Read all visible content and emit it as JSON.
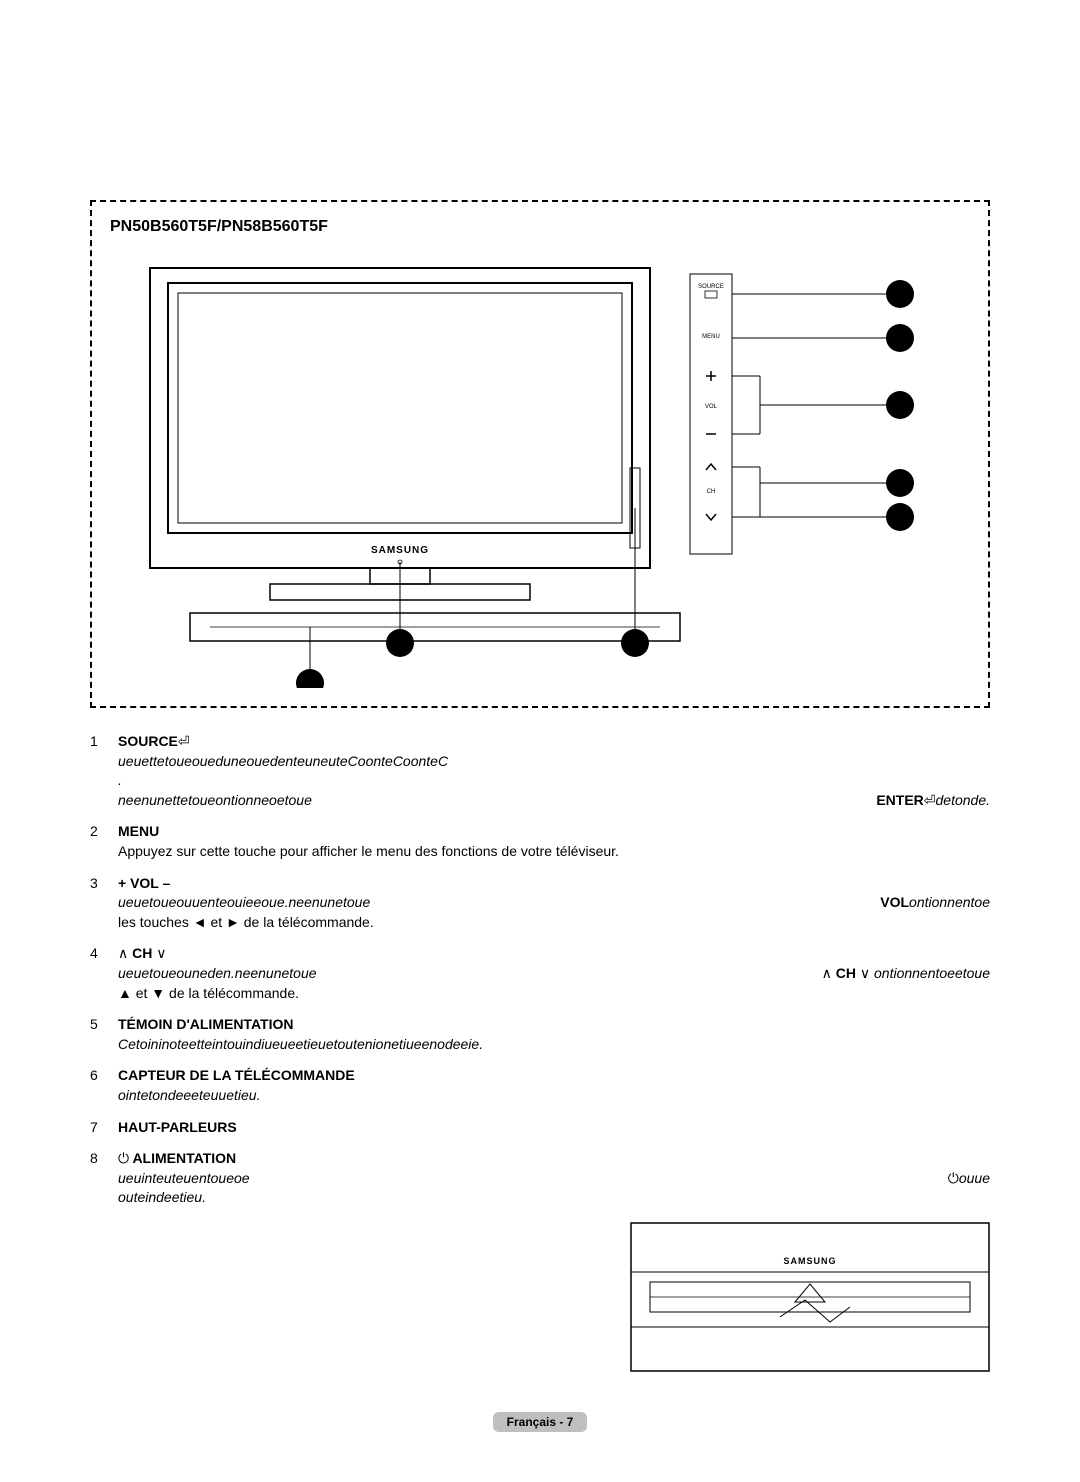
{
  "diagram": {
    "title": "PN50B560T5F/PN58B560T5F",
    "panel_labels": {
      "source": "SOURCE",
      "menu": "MENU",
      "vol": "VOL",
      "ch": "CH"
    },
    "brand_text": "SAMSUNG"
  },
  "items": [
    {
      "num": "1",
      "title_bold": "SOURCE",
      "title_suffix_icon": "⏎",
      "lines": [
        {
          "left_italic": "ueuettetoueoueduneouedenteuneuteCoonteCoonteC",
          "right": ""
        },
        {
          "left_italic": ".",
          "right": ""
        },
        {
          "left_italic": "neenunettetoueontionneoetoue",
          "right_bold": "ENTER",
          "right_suffix_icon": "⏎",
          "right_italic": "detonde."
        }
      ]
    },
    {
      "num": "2",
      "title_bold": "MENU",
      "lines": [
        {
          "left": "Appuyez sur cette touche pour afficher le menu des fonctions de votre téléviseur.",
          "right": ""
        }
      ]
    },
    {
      "num": "3",
      "title_bold": "+ VOL –",
      "lines": [
        {
          "left_italic": "ueuetoueouuenteouieeoue.neenunetoue",
          "right_bold": "VOL",
          "right_italic": "ontionnentoe"
        },
        {
          "left": "les touches ◄ et ► de la télécommande.",
          "right": ""
        }
      ]
    },
    {
      "num": "4",
      "title_prefix_icon": "∧",
      "title_bold": " CH ",
      "title_suffix_icon": "∨",
      "lines": [
        {
          "left_italic": "ueuetoueouneden.neenunetoue",
          "right_prefix_icon": "∧",
          "right_bold": " CH ",
          "right_mid_icon": "∨",
          "right_italic": " ontionnentoeetoue"
        },
        {
          "left": "▲ et ▼ de la télécommande.",
          "right": ""
        }
      ]
    },
    {
      "num": "5",
      "title_bold": "TÉMOIN D'ALIMENTATION",
      "lines": [
        {
          "left_italic": "Cetoininoteetteintouindiueueetieuetoutenionetiueenodeeie.",
          "right": ""
        }
      ]
    },
    {
      "num": "6",
      "title_bold": "CAPTEUR DE LA TÉLÉCOMMANDE",
      "lines": [
        {
          "left_italic": "ointetondeeeteuuetieu.",
          "right": ""
        }
      ]
    },
    {
      "num": "7",
      "title_bold": "HAUT-PARLEURS",
      "lines": []
    },
    {
      "num": "8",
      "title_prefix_icon": "⏻",
      "title_bold": " ALIMENTATION",
      "lines": [
        {
          "left_italic": "ueuinteuteuentoueoe",
          "right_prefix_icon": "⏻",
          "right_italic": "ouue"
        },
        {
          "left_italic": "outeindeetieu.",
          "right": ""
        }
      ]
    }
  ],
  "footer": "Français - 7",
  "colors": {
    "dashed_border": "#000000",
    "footer_bg": "#bfbfbf",
    "callout_fill": "#000000"
  },
  "diagram_style": {
    "tv_stroke": "#000000",
    "tv_stroke_width": 2,
    "callout_radius": 14,
    "label_fontsize": 7
  }
}
